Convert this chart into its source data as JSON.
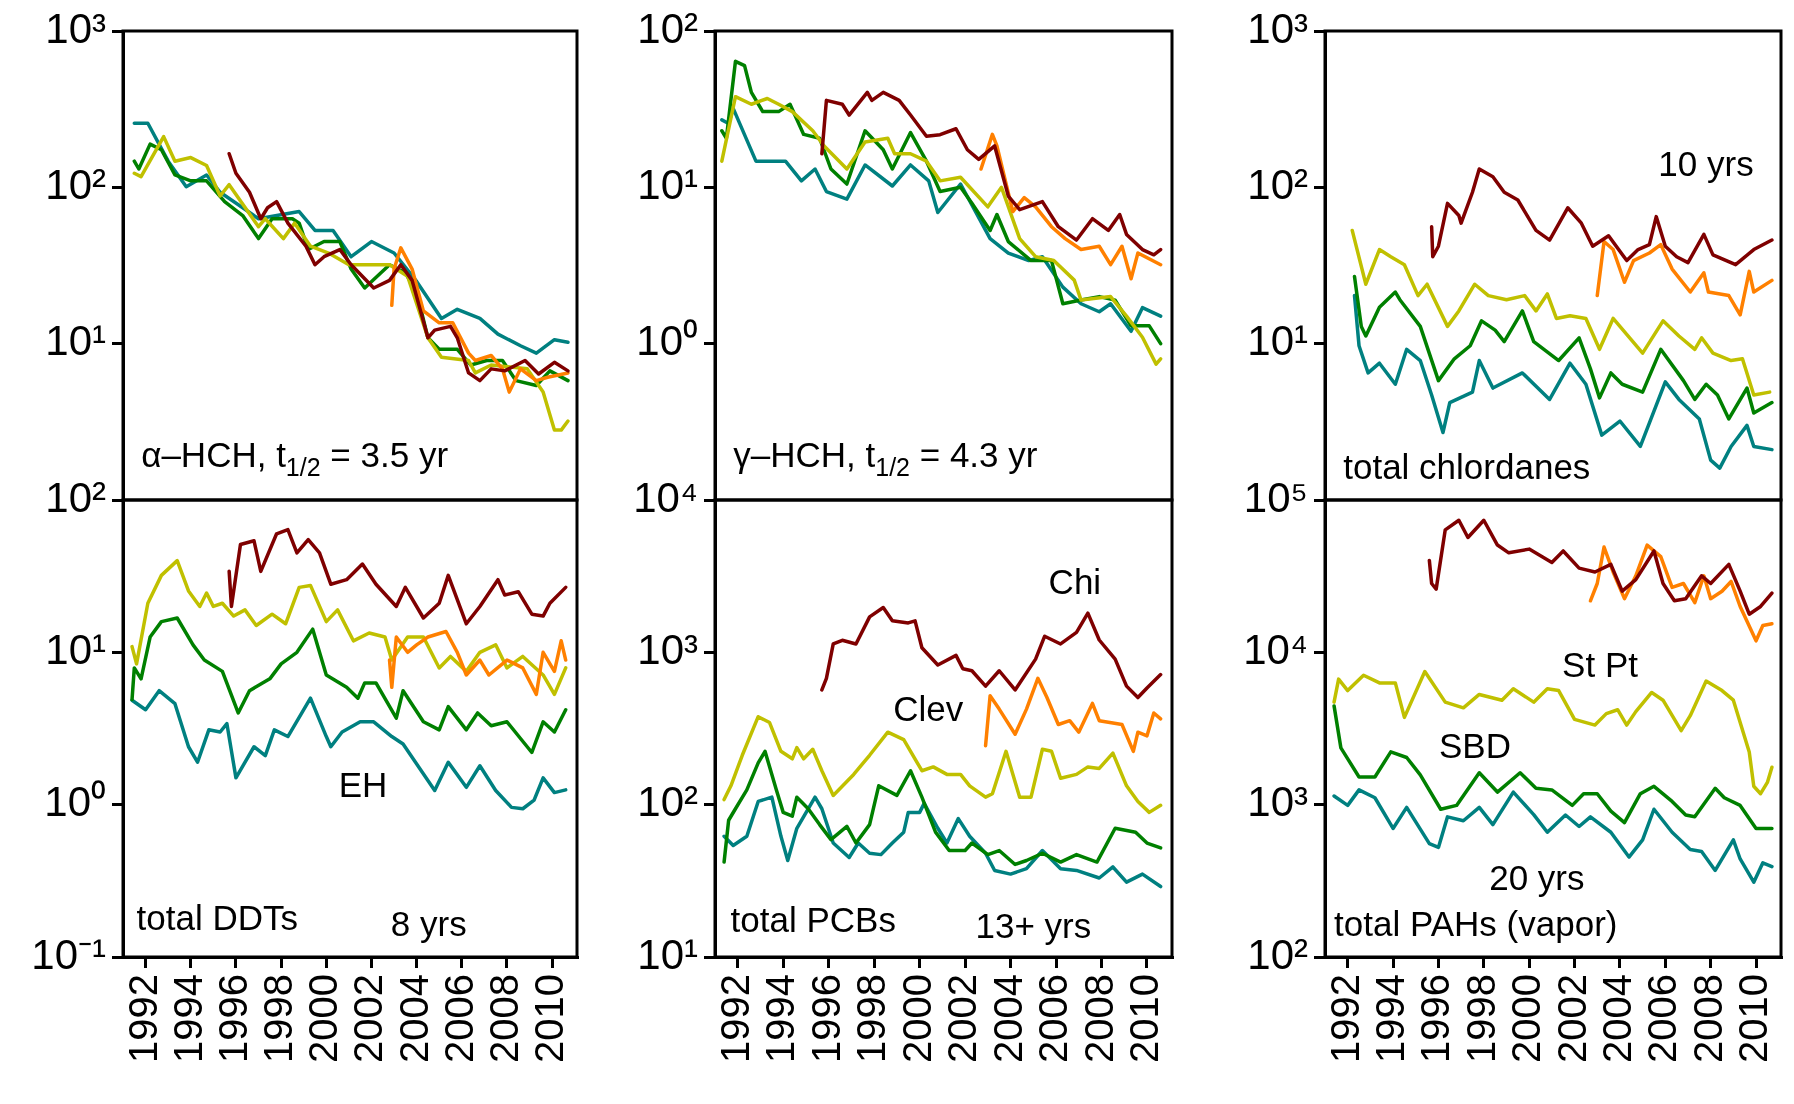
{
  "chart_data": [
    {
      "type": "line",
      "title": "α–HCH, t$_{1/2}$ = 3.5 yr",
      "log": true,
      "tick_labels": "y",
      "xlim": [
        1991,
        2011.1
      ],
      "xticks": [
        1992,
        1994,
        1996,
        1998,
        2000,
        2002,
        2004,
        2006,
        2008,
        2010
      ],
      "ylim": [
        1,
        1000
      ],
      "yticks": [
        {
          "value": 1,
          "label": null
        },
        {
          "value": 10,
          "label": "10¹"
        },
        {
          "value": 100,
          "label": "10²"
        },
        {
          "value": 1000,
          "label": "10³"
        }
      ],
      "series": [
        {
          "color": "#7f0000",
          "x": [
            1995.7,
            1996.0,
            1996.6,
            1997.1,
            1997.4,
            1997.8,
            1998.3,
            1999.1,
            1999.5,
            1999.9,
            2000.6,
            2001.1,
            2002.1,
            2002.8,
            2003.3,
            2003.8,
            2004.5,
            2004.8,
            2005.5,
            2005.8,
            2006.3,
            2006.8,
            2007.3,
            2007.9,
            2008.8,
            2009.4,
            2010.1,
            2010.7
          ],
          "values": [
            164,
            123,
            93,
            63,
            74,
            81,
            59,
            42,
            32,
            36,
            40,
            32,
            22.7,
            25.4,
            32,
            25.4,
            10.9,
            12.2,
            12.9,
            10.9,
            6.5,
            5.8,
            6.9,
            6.7,
            7.8,
            6.4,
            7.6,
            6.7
          ]
        },
        {
          "color": "#ff8000",
          "x": [
            2002.9,
            2003.0,
            2003.3,
            2003.8,
            2004.3,
            2005.0,
            2005.6,
            2006.3,
            2006.6,
            2007.3,
            2007.8,
            2008.1,
            2008.6,
            2009.3,
            2009.8,
            2010.7
          ],
          "values": [
            17.6,
            30,
            41,
            30,
            16.2,
            13.6,
            13.6,
            8.7,
            7.8,
            8.4,
            6.9,
            4.9,
            6.9,
            5.8,
            6.1,
            6.5
          ]
        },
        {
          "color": "#c0c000",
          "x": [
            1991.5,
            1991.8,
            1992.8,
            1993.3,
            1994.0,
            1994.7,
            1995.3,
            1995.7,
            1997.0,
            1997.3,
            1998.1,
            1998.6,
            1999.3,
            2000.1,
            2001.0,
            2002.0,
            2002.8,
            2003.6,
            2004.5,
            2005.1,
            2006.3,
            2006.6,
            2007.3,
            2008.9,
            2009.6,
            2010.1,
            2010.4,
            2010.7
          ],
          "values": [
            123,
            117,
            211,
            147,
            155,
            138,
            88,
            104,
            56,
            63,
            47,
            59,
            42,
            38,
            32,
            32,
            32,
            27,
            10.9,
            8.2,
            7.8,
            6.5,
            7.3,
            6.9,
            4.9,
            2.8,
            2.8,
            3.2
          ]
        },
        {
          "color": "#008000",
          "x": [
            1991.5,
            1991.7,
            1992.2,
            1992.7,
            1993.3,
            1994.0,
            1994.7,
            1995.5,
            1996.3,
            1997.0,
            1997.6,
            1998.5,
            1998.8,
            1999.2,
            1999.9,
            2000.6,
            2001.1,
            2001.7,
            2002.8,
            2003.5,
            2004.0,
            2004.5,
            2005.0,
            2005.8,
            2006.4,
            2007.1,
            2007.8,
            2008.4,
            2009.3,
            2009.9,
            2010.7
          ],
          "values": [
            147,
            131,
            189,
            174,
            120,
            110,
            110,
            81,
            66,
            47,
            63,
            63,
            59,
            40,
            45,
            45,
            30,
            22.7,
            32,
            28.4,
            21.4,
            10.9,
            9.2,
            9.2,
            7.3,
            7.8,
            7.8,
            5.8,
            5.4,
            6.7,
            5.8
          ]
        },
        {
          "color": "#008080",
          "x": [
            1991.5,
            1992.1,
            1993.0,
            1993.8,
            1994.7,
            1995.3,
            1997.0,
            1998.8,
            1999.5,
            2000.3,
            2001.1,
            2002.0,
            2003.0,
            2004.0,
            2005.1,
            2005.8,
            2006.8,
            2007.6,
            2008.6,
            2009.3,
            2010.1,
            2010.7
          ],
          "values": [
            257,
            257,
            147,
            101,
            120,
            93,
            63,
            70,
            53,
            53,
            36,
            45,
            38,
            25,
            14.5,
            16.6,
            14.5,
            11.5,
            9.7,
            8.7,
            10.6,
            10.2
          ]
        }
      ]
    },
    {
      "type": "line",
      "title": "γ–HCH, t$_{1/2}$ = 4.3 yr",
      "log": true,
      "tick_labels": "y",
      "xlim": [
        1991,
        2011.1
      ],
      "xticks": [
        1992,
        1994,
        1996,
        1998,
        2000,
        2002,
        2004,
        2006,
        2008,
        2010
      ],
      "ylim": [
        0.1,
        100
      ],
      "yticks": [
        {
          "value": 0.1,
          "label": null
        },
        {
          "value": 1,
          "label": "10⁰"
        },
        {
          "value": 10,
          "label": "10¹"
        },
        {
          "value": 100,
          "label": "10²"
        }
      ],
      "series": [
        {
          "color": "#7f0000",
          "x": [
            1995.7,
            1995.9,
            1996.6,
            1996.9,
            1997.7,
            1997.9,
            1998.4,
            1999.1,
            1999.6,
            2000.3,
            2000.9,
            2001.6,
            2002.1,
            2002.6,
            2003.3,
            2003.9,
            2004.4,
            2005.4,
            2006.1,
            2006.9,
            2007.6,
            2008.3,
            2008.8,
            2009.1,
            2009.8,
            2010.3,
            2010.6
          ],
          "values": [
            16.4,
            36,
            34,
            29,
            40.5,
            36,
            40.5,
            36,
            29,
            21.2,
            21.7,
            23.7,
            17.4,
            15.1,
            18.4,
            8.8,
            7.2,
            8.1,
            5.6,
            4.6,
            6.3,
            5.3,
            6.7,
            5.0,
            4.0,
            3.7,
            4.0
          ]
        },
        {
          "color": "#ff8000",
          "x": [
            2002.7,
            2003.2,
            2003.4,
            2004.1,
            2004.6,
            2005.1,
            2005.8,
            2006.4,
            2007.1,
            2007.9,
            2008.4,
            2008.9,
            2009.3,
            2009.6,
            2010.6
          ],
          "values": [
            13.1,
            21.8,
            18.4,
            7.0,
            8.6,
            7.5,
            5.6,
            4.7,
            4.0,
            4.2,
            3.2,
            4.2,
            2.6,
            3.8,
            3.2
          ]
        },
        {
          "color": "#c0c000",
          "x": [
            1991.3,
            1991.9,
            1992.6,
            1993.3,
            1993.8,
            1994.4,
            1995.3,
            1995.8,
            1996.8,
            1997.6,
            1998.6,
            1998.9,
            1999.6,
            2000.3,
            2000.9,
            2001.8,
            2003.0,
            2003.6,
            2004.4,
            2005.1,
            2005.9,
            2006.8,
            2007.1,
            2008.4,
            2009.1,
            2009.8,
            2010.4,
            2010.6
          ],
          "values": [
            14.7,
            38,
            34,
            37,
            34,
            30.5,
            23,
            18.4,
            13.1,
            19.5,
            20.6,
            16.4,
            16.4,
            14.7,
            11,
            11.6,
            7.5,
            10,
            4.7,
            3.6,
            3.4,
            2.55,
            1.9,
            2.0,
            1.5,
            1.1,
            0.74,
            0.8
          ]
        },
        {
          "color": "#008000",
          "x": [
            1991.3,
            1991.5,
            1991.9,
            1992.3,
            1992.6,
            1993.1,
            1993.8,
            1994.3,
            1994.9,
            1995.6,
            1996.1,
            1996.8,
            1997.6,
            1998.4,
            1998.8,
            1999.6,
            2000.3,
            2000.9,
            2001.8,
            2002.3,
            2003.1,
            2003.4,
            2003.9,
            2004.9,
            2005.8,
            2006.3,
            2007.1,
            2007.9,
            2008.6,
            2009.3,
            2010.1,
            2010.6
          ],
          "values": [
            23,
            20.6,
            64,
            60,
            40.5,
            30.5,
            30.5,
            34,
            21.8,
            20.6,
            13.1,
            10.5,
            23,
            17.4,
            13.1,
            22.4,
            14.7,
            9.4,
            10,
            7.9,
            5.3,
            6.7,
            4.5,
            3.4,
            3.4,
            1.8,
            1.9,
            2.0,
            1.9,
            1.3,
            1.3,
            1.0
          ]
        },
        {
          "color": "#008080",
          "x": [
            1991.3,
            1991.6,
            1991.8,
            1992.8,
            1994.1,
            1994.8,
            1995.4,
            1995.9,
            1996.8,
            1997.6,
            1998.8,
            1999.6,
            2000.4,
            2000.8,
            2001.8,
            2003.1,
            2003.9,
            2004.8,
            2005.4,
            2006.3,
            2007.1,
            2007.9,
            2008.4,
            2009.3,
            2009.8,
            2010.6
          ],
          "values": [
            27,
            25.6,
            32,
            14.7,
            14.7,
            11,
            13.1,
            9.4,
            8.4,
            13.9,
            10.2,
            13.9,
            11,
            6.9,
            10.5,
            4.7,
            3.8,
            3.4,
            3.6,
            2.3,
            1.8,
            1.6,
            1.8,
            1.2,
            1.7,
            1.5
          ]
        }
      ]
    },
    {
      "type": "line",
      "title": "total chlordanes",
      "annotations": [
        "10 yrs"
      ],
      "log": true,
      "tick_labels": "y",
      "xlim": [
        1991,
        2011.1
      ],
      "xticks": [
        1992,
        1994,
        1996,
        1998,
        2000,
        2002,
        2004,
        2006,
        2008,
        2010
      ],
      "ylim": [
        1,
        1000
      ],
      "yticks": [
        {
          "value": 1,
          "label": null
        },
        {
          "value": 10,
          "label": "10¹"
        },
        {
          "value": 100,
          "label": "10²"
        },
        {
          "value": 1000,
          "label": "10³"
        }
      ],
      "series": [
        {
          "color": "#7f0000",
          "x": [
            1995.7,
            1995.75,
            1996.0,
            1996.4,
            1996.9,
            1997.0,
            1997.5,
            1997.8,
            1998.4,
            1998.9,
            1999.5,
            2000.3,
            2000.9,
            2001.7,
            2002.3,
            2002.8,
            2003.5,
            2004.3,
            2004.8,
            2005.3,
            2005.6,
            2006.0,
            2006.5,
            2007.0,
            2007.7,
            2008.1,
            2009.1,
            2009.9,
            2010.7
          ],
          "values": [
            56,
            36,
            42,
            79,
            66,
            59,
            93,
            131,
            117,
            93,
            83,
            53,
            46,
            74,
            59,
            42,
            49,
            34,
            40,
            43,
            65,
            42,
            36,
            33,
            50,
            37,
            32,
            40,
            46
          ]
        },
        {
          "color": "#ff8000",
          "x": [
            2003.0,
            2003.3,
            2003.7,
            2004.2,
            2004.6,
            2005.3,
            2005.8,
            2006.3,
            2007.1,
            2007.7,
            2007.9,
            2008.8,
            2009.3,
            2009.7,
            2009.9,
            2010.7
          ],
          "values": [
            20.3,
            45,
            40,
            24.7,
            34,
            38,
            43,
            30,
            21.4,
            28.4,
            21.4,
            20.3,
            15.3,
            29,
            21.4,
            25.4
          ]
        },
        {
          "color": "#c0c000",
          "x": [
            1992.2,
            1992.8,
            1993.4,
            1993.9,
            1994.5,
            1995.1,
            1995.5,
            1996.4,
            1996.9,
            1997.6,
            1998.2,
            1999.0,
            1999.8,
            2000.3,
            2000.8,
            2001.2,
            2001.8,
            2002.5,
            2003.1,
            2003.7,
            2005.0,
            2005.9,
            2006.6,
            2007.3,
            2007.6,
            2008.1,
            2008.9,
            2009.4,
            2009.9,
            2010.6
          ],
          "values": [
            53,
            24,
            40,
            36,
            32,
            20.3,
            24,
            12.9,
            16.2,
            24,
            20.3,
            19.1,
            20.3,
            16.2,
            20.8,
            14.5,
            15.1,
            14.5,
            9.2,
            14.5,
            8.7,
            14,
            11.2,
            9.2,
            10.9,
            8.7,
            7.8,
            8.0,
            4.7,
            4.9
          ]
        },
        {
          "color": "#008000",
          "x": [
            1992.3,
            1992.6,
            1992.8,
            1993.4,
            1994.1,
            1994.3,
            1995.2,
            1996.0,
            1996.7,
            1997.4,
            1997.9,
            1998.5,
            1998.9,
            1999.7,
            2000.2,
            2001.3,
            2002.2,
            2002.7,
            2003.1,
            2003.6,
            2004.1,
            2005.0,
            2005.8,
            2006.8,
            2007.3,
            2007.8,
            2008.3,
            2008.8,
            2009.6,
            2009.9,
            2010.7
          ],
          "values": [
            26.9,
            12.9,
            11.2,
            17.1,
            21.4,
            19.1,
            12.9,
            5.8,
            8.0,
            9.7,
            14,
            12.2,
            10.3,
            16.2,
            10.3,
            7.8,
            10.9,
            6.9,
            4.5,
            6.5,
            5.5,
            4.9,
            9.2,
            5.8,
            4.4,
            5.5,
            4.7,
            3.3,
            5.2,
            3.6,
            4.2
          ]
        },
        {
          "color": "#008080",
          "x": [
            1992.3,
            1992.5,
            1992.9,
            1993.4,
            1994.1,
            1994.6,
            1995.2,
            1995.7,
            1996.2,
            1996.5,
            1997.5,
            1997.8,
            1998.4,
            1999.7,
            2000.9,
            2001.8,
            2002.5,
            2003.2,
            2004.0,
            2004.9,
            2006.0,
            2006.6,
            2007.5,
            2008.0,
            2008.4,
            2008.9,
            2009.6,
            2009.9,
            2010.7
          ],
          "values": [
            20.3,
            9.7,
            6.5,
            7.5,
            5.5,
            9.2,
            7.8,
            4.7,
            2.7,
            4.2,
            4.9,
            7.8,
            5.2,
            6.5,
            4.4,
            7.5,
            5.5,
            2.6,
            3.2,
            2.2,
            5.7,
            4.4,
            3.3,
            1.8,
            1.6,
            2.2,
            3.0,
            2.2,
            2.1
          ]
        }
      ]
    },
    {
      "type": "line",
      "title": "total DDTs",
      "annotations": [
        "8 yrs"
      ],
      "log": true,
      "xlim": [
        1991,
        2011.1
      ],
      "xticks": [
        1992,
        1994,
        1996,
        1998,
        2000,
        2002,
        2004,
        2006,
        2008,
        2010
      ],
      "ylim": [
        0.1,
        100
      ],
      "yticks": [
        {
          "value": 0.1,
          "label": "10⁻¹"
        },
        {
          "value": 1,
          "label": "10⁰"
        },
        {
          "value": 10,
          "label": "10¹"
        },
        {
          "value": 100,
          "label": "10²"
        }
      ],
      "series": [
        {
          "color": "#7f0000",
          "x": [
            1995.7,
            1995.8,
            1996.2,
            1996.8,
            1997.1,
            1997.8,
            1998.3,
            1998.7,
            1999.2,
            1999.7,
            2000.2,
            2000.9,
            2001.6,
            2002.2,
            2003.1,
            2003.5,
            2004.3,
            2005.0,
            2005.4,
            2006.2,
            2006.8,
            2007.6,
            2007.9,
            2008.5,
            2009.1,
            2009.6,
            2009.9,
            2010.6
          ],
          "values": [
            34,
            20,
            51,
            54,
            34,
            60,
            64,
            45,
            55,
            45,
            28,
            30,
            38,
            28,
            20,
            26.7,
            16.8,
            21,
            32,
            15.4,
            20,
            30,
            23.8,
            25,
            17.8,
            17.3,
            21,
            26.7
          ]
        },
        {
          "color": "#ff8000",
          "x": [
            2002.8,
            2002.9,
            2003.1,
            2003.6,
            2004.0,
            2004.5,
            2005.3,
            2005.8,
            2006.2,
            2006.8,
            2007.2,
            2008.0,
            2008.7,
            2009.3,
            2009.6,
            2010.1,
            2010.4,
            2010.6
          ],
          "values": [
            8.9,
            5.9,
            12.6,
            10,
            11.2,
            12.6,
            13.7,
            10,
            7.1,
            8.9,
            7.1,
            8.9,
            7.9,
            5.3,
            10,
            7.5,
            11.9,
            8.9
          ]
        },
        {
          "color": "#c0c000",
          "x": [
            1991.4,
            1991.6,
            1992.1,
            1992.7,
            1993.4,
            1993.9,
            1994.4,
            1994.7,
            1995.0,
            1995.4,
            1995.9,
            1996.4,
            1996.9,
            1997.6,
            1998.2,
            1998.8,
            1999.3,
            2000.0,
            2000.5,
            2001.2,
            2001.9,
            2002.6,
            2002.9,
            2003.6,
            2004.3,
            2005.0,
            2005.5,
            2006.2,
            2006.8,
            2007.5,
            2008.0,
            2008.7,
            2009.6,
            2010.1,
            2010.6
          ],
          "values": [
            10.9,
            8.4,
            21,
            32,
            40,
            25.3,
            20,
            24.5,
            20,
            21,
            17.3,
            19,
            15,
            17.8,
            15.4,
            26.7,
            27.5,
            15.9,
            19,
            11.9,
            13.4,
            12.6,
            8.9,
            12.6,
            12.6,
            7.9,
            9.4,
            7.5,
            10,
            11.2,
            7.9,
            9.4,
            7.1,
            5.3,
            7.9
          ]
        },
        {
          "color": "#008000",
          "x": [
            1991.4,
            1991.5,
            1991.8,
            1992.2,
            1992.7,
            1993.4,
            1994.1,
            1994.6,
            1995.4,
            1996.1,
            1996.6,
            1997.5,
            1998.0,
            1998.7,
            1999.4,
            2000.0,
            2000.9,
            2001.4,
            2001.7,
            2002.2,
            2003.1,
            2003.4,
            2004.3,
            2005.0,
            2005.4,
            2006.2,
            2006.7,
            2007.3,
            2008.0,
            2009.1,
            2009.6,
            2010.1,
            2010.6
          ],
          "values": [
            4.9,
            7.9,
            6.7,
            12.6,
            15.9,
            16.8,
            11.2,
            8.9,
            7.5,
            4.0,
            5.6,
            6.7,
            8.4,
            10,
            14.2,
            7.1,
            5.9,
            5.0,
            6.3,
            6.3,
            3.7,
            5.6,
            3.5,
            3.1,
            4.4,
            3.1,
            4.0,
            3.3,
            3.5,
            2.2,
            3.5,
            3.0,
            4.2
          ]
        },
        {
          "name": "EH",
          "color": "#008080",
          "x": [
            1991.4,
            1992.0,
            1992.6,
            1993.3,
            1993.9,
            1994.3,
            1994.8,
            1995.3,
            1995.6,
            1996.0,
            1996.8,
            1997.3,
            1997.7,
            1998.3,
            1999.3,
            2000.0,
            2000.2,
            2000.7,
            2001.5,
            2002.1,
            2002.9,
            2003.4,
            2004.8,
            2005.4,
            2006.2,
            2006.8,
            2007.5,
            2008.2,
            2008.7,
            2009.2,
            2009.6,
            2010.1,
            2010.6
          ],
          "values": [
            4.85,
            4.2,
            5.6,
            4.6,
            2.4,
            1.9,
            3.1,
            3.0,
            3.4,
            1.5,
            2.4,
            2.1,
            3.1,
            2.8,
            5.0,
            2.8,
            2.4,
            3.0,
            3.5,
            3.5,
            2.8,
            2.5,
            1.24,
            1.9,
            1.3,
            1.8,
            1.24,
            0.96,
            0.94,
            1.07,
            1.5,
            1.2,
            1.25
          ]
        }
      ]
    },
    {
      "type": "line",
      "title": "total PCBs",
      "annotations": [
        "13+ yrs"
      ],
      "log": true,
      "xlim": [
        1991,
        2011.1
      ],
      "xticks": [
        1992,
        1994,
        1996,
        1998,
        2000,
        2002,
        2004,
        2006,
        2008,
        2010
      ],
      "ylim": [
        10,
        10000
      ],
      "yticks": [
        {
          "value": 10,
          "label": "10¹"
        },
        {
          "value": 100,
          "label": "10²"
        },
        {
          "value": 1000,
          "label": "10³"
        },
        {
          "value": 10000,
          "label": "10⁴"
        }
      ],
      "series": [
        {
          "name": "Chi",
          "color": "#7f0000",
          "x": [
            1995.7,
            1995.9,
            1996.2,
            1996.6,
            1997.2,
            1997.8,
            1998.4,
            1998.8,
            1999.5,
            1999.8,
            2000.1,
            2000.8,
            2001.6,
            2001.9,
            2002.3,
            2002.9,
            2003.5,
            2004.2,
            2005.1,
            2005.5,
            2006.2,
            2006.9,
            2007.4,
            2007.9,
            2008.6,
            2009.1,
            2009.6,
            2010.0,
            2010.6
          ],
          "values": [
            566,
            675,
            1135,
            1200,
            1135,
            1710,
            1970,
            1610,
            1560,
            1610,
            1072,
            826,
            955,
            780,
            757,
            600,
            757,
            566,
            902,
            1276,
            1135,
            1352,
            1807,
            1205,
            902,
            600,
            505,
            583,
            714
          ]
        },
        {
          "name": "Clev",
          "color": "#ff8000",
          "x": [
            2002.9,
            2003.1,
            2003.5,
            2004.2,
            2004.7,
            2005.2,
            2005.6,
            2006.1,
            2006.6,
            2007.0,
            2007.6,
            2007.9,
            2008.9,
            2009.4,
            2009.6,
            2010.0,
            2010.3,
            2010.6
          ],
          "values": [
            244,
            519,
            424,
            290,
            424,
            675,
            505,
            336,
            356,
            299,
            462,
            356,
            336,
            224,
            299,
            283,
            400,
            366
          ]
        },
        {
          "color": "#c0c000",
          "x": [
            1991.4,
            1991.7,
            1992.2,
            1992.9,
            1993.4,
            1993.9,
            1994.4,
            1994.6,
            1994.9,
            1995.3,
            1995.7,
            1996.2,
            1997.1,
            1997.8,
            1998.6,
            1999.3,
            2000.1,
            2000.6,
            2001.2,
            2001.8,
            2002.2,
            2002.9,
            2003.2,
            2003.8,
            2004.4,
            2004.9,
            2005.4,
            2005.8,
            2006.2,
            2006.9,
            2007.4,
            2007.9,
            2008.5,
            2009.1,
            2009.6,
            2010.1,
            2010.6
          ],
          "values": [
            108,
            133,
            211,
            378,
            346,
            224,
            200,
            237,
            200,
            231,
            167,
            115,
            158,
            211,
            299,
            267,
            167,
            177,
            158,
            158,
            133,
            112,
            118,
            224,
            112,
            112,
            231,
            224,
            149,
            158,
            177,
            173,
            218,
            133,
            105,
            89,
            99
          ]
        },
        {
          "color": "#008000",
          "x": [
            1991.4,
            1991.6,
            1991.9,
            1992.4,
            1992.9,
            1993.2,
            1993.7,
            1994.0,
            1994.4,
            1994.6,
            1995.1,
            1995.6,
            1996.1,
            1996.8,
            1997.2,
            1997.8,
            1998.2,
            1999.0,
            1999.6,
            2000.1,
            2000.7,
            2001.3,
            2002.0,
            2002.3,
            2003.0,
            2003.5,
            2004.2,
            2004.7,
            2005.4,
            2006.2,
            2006.9,
            2007.8,
            2008.6,
            2009.5,
            2010.0,
            2010.6
          ],
          "values": [
            42,
            79,
            94,
            125,
            188,
            224,
            125,
            89,
            84,
            112,
            94,
            74,
            59,
            72,
            56,
            74,
            133,
            115,
            167,
            112,
            66,
            50,
            50,
            56,
            47,
            50,
            40.5,
            43,
            48,
            42,
            47,
            42,
            70,
            66,
            56,
            52
          ]
        },
        {
          "color": "#008080",
          "x": [
            1991.4,
            1991.8,
            1992.4,
            1992.9,
            1993.5,
            1993.9,
            1994.2,
            1994.6,
            1995.4,
            1995.7,
            1996.2,
            1996.9,
            1997.3,
            1997.8,
            1998.3,
            1998.8,
            1999.3,
            1999.5,
            2000.0,
            2000.2,
            2000.8,
            2001.2,
            2001.7,
            2002.2,
            2002.9,
            2003.3,
            2004.0,
            2004.7,
            2005.4,
            2006.2,
            2006.9,
            2007.9,
            2008.5,
            2009.1,
            2009.8,
            2010.6
          ],
          "values": [
            62,
            54,
            62,
            105,
            112,
            62,
            43,
            70,
            112,
            94,
            56,
            45,
            56,
            48,
            47,
            56,
            66,
            89,
            89,
            102,
            70,
            56,
            81,
            62,
            48,
            37,
            35,
            38,
            50,
            38,
            37,
            33,
            39,
            31,
            35,
            29
          ]
        }
      ]
    },
    {
      "type": "line",
      "title": "total PAHs (vapor)",
      "annotations": [
        "20 yrs"
      ],
      "log": true,
      "xlim": [
        1991,
        2011.1
      ],
      "xticks": [
        1992,
        1994,
        1996,
        1998,
        2000,
        2002,
        2004,
        2006,
        2008,
        2010
      ],
      "ylim": [
        100,
        100000
      ],
      "yticks": [
        {
          "value": 100,
          "label": "10²"
        },
        {
          "value": 1000,
          "label": "10³"
        },
        {
          "value": 10000,
          "label": "10⁴"
        },
        {
          "value": 100000,
          "label": "10⁵"
        }
      ],
      "series": [
        {
          "color": "#7f0000",
          "x": [
            1995.6,
            1995.7,
            1995.9,
            1996.3,
            1996.9,
            1997.3,
            1998.0,
            1998.6,
            1999.1,
            2000.0,
            2001.0,
            2001.5,
            2002.2,
            2002.9,
            2003.6,
            2004.1,
            2004.7,
            2005.5,
            2005.9,
            2006.4,
            2006.9,
            2007.6,
            2008.0,
            2008.8,
            2009.3,
            2009.7,
            2010.2,
            2010.7
          ],
          "values": [
            40100,
            28300,
            26000,
            63700,
            73600,
            56700,
            73600,
            50600,
            45000,
            47600,
            38900,
            46300,
            35700,
            33700,
            37800,
            25200,
            30000,
            46300,
            28300,
            21800,
            22500,
            31800,
            28300,
            37800,
            25200,
            17800,
            20000,
            24500
          ]
        },
        {
          "color": "#ff8000",
          "x": [
            2002.7,
            2003.0,
            2003.3,
            2003.7,
            2004.2,
            2004.7,
            2005.2,
            2005.8,
            2006.3,
            2006.8,
            2007.3,
            2007.7,
            2008.0,
            2008.5,
            2008.9,
            2009.3,
            2010.0,
            2010.3,
            2010.7
          ],
          "values": [
            21800,
            28300,
            49100,
            33700,
            22500,
            31800,
            50600,
            42500,
            26700,
            28300,
            21200,
            31800,
            22500,
            25200,
            29200,
            20000,
            11900,
            15000,
            15400
          ]
        },
        {
          "name": "St Pt",
          "color": "#c0c000",
          "x": [
            1991.4,
            1991.6,
            1992.0,
            1992.7,
            1993.4,
            1994.1,
            1994.5,
            1995.4,
            1996.3,
            1997.1,
            1997.8,
            1998.8,
            1999.3,
            2000.2,
            2000.8,
            2001.3,
            2002.0,
            2002.9,
            2003.4,
            2003.9,
            2004.3,
            2004.7,
            2005.4,
            2005.9,
            2006.7,
            2007.1,
            2007.8,
            2008.5,
            2009.0,
            2009.7,
            2009.9,
            2010.2,
            2010.5,
            2010.7
          ],
          "values": [
            4710,
            6670,
            5610,
            7070,
            6300,
            6300,
            3740,
            7480,
            4710,
            4320,
            5290,
            4850,
            5770,
            4710,
            5770,
            5610,
            3630,
            3330,
            3960,
            4200,
            3330,
            4080,
            5450,
            4850,
            3060,
            3840,
            6480,
            5610,
            4850,
            2220,
            1320,
            1180,
            1400,
            1760
          ]
        },
        {
          "name": "SBD",
          "color": "#008000",
          "x": [
            1991.4,
            1991.7,
            1992.5,
            1993.2,
            1993.9,
            1994.6,
            1995.2,
            1996.1,
            1996.8,
            1997.8,
            1998.6,
            1999.6,
            2000.3,
            2001.0,
            2001.9,
            2002.4,
            2003.0,
            2003.6,
            2004.2,
            2004.9,
            2005.5,
            2006.3,
            2006.9,
            2007.3,
            2008.2,
            2008.6,
            2009.3,
            2010.0,
            2010.7
          ],
          "values": [
            4450,
            2360,
            1520,
            1520,
            2220,
            2040,
            1570,
            933,
            989,
            1620,
            1210,
            1620,
            1280,
            1250,
            989,
            1180,
            1180,
            906,
            762,
            1180,
            1320,
            1050,
            855,
            832,
            1280,
            1110,
            989,
            698,
            698
          ]
        },
        {
          "color": "#008080",
          "x": [
            1991.4,
            1992.0,
            1992.5,
            1993.2,
            1994.0,
            1994.6,
            1995.6,
            1996.0,
            1996.4,
            1997.1,
            1997.8,
            1998.4,
            1999.3,
            2000.2,
            2000.8,
            2001.6,
            2002.2,
            2002.7,
            2003.6,
            2004.4,
            2005.0,
            2005.5,
            2006.3,
            2007.1,
            2007.6,
            2008.2,
            2009.0,
            2009.3,
            2009.9,
            2010.3,
            2010.7
          ],
          "values": [
            1140,
            989,
            1250,
            1110,
            698,
            960,
            555,
            524,
            832,
            784,
            960,
            740,
            1210,
            861,
            659,
            855,
            719,
            832,
            659,
            453,
            588,
            933,
            659,
            508,
            493,
            370,
            588,
            440,
            310,
            415,
            392
          ]
        }
      ]
    }
  ]
}
